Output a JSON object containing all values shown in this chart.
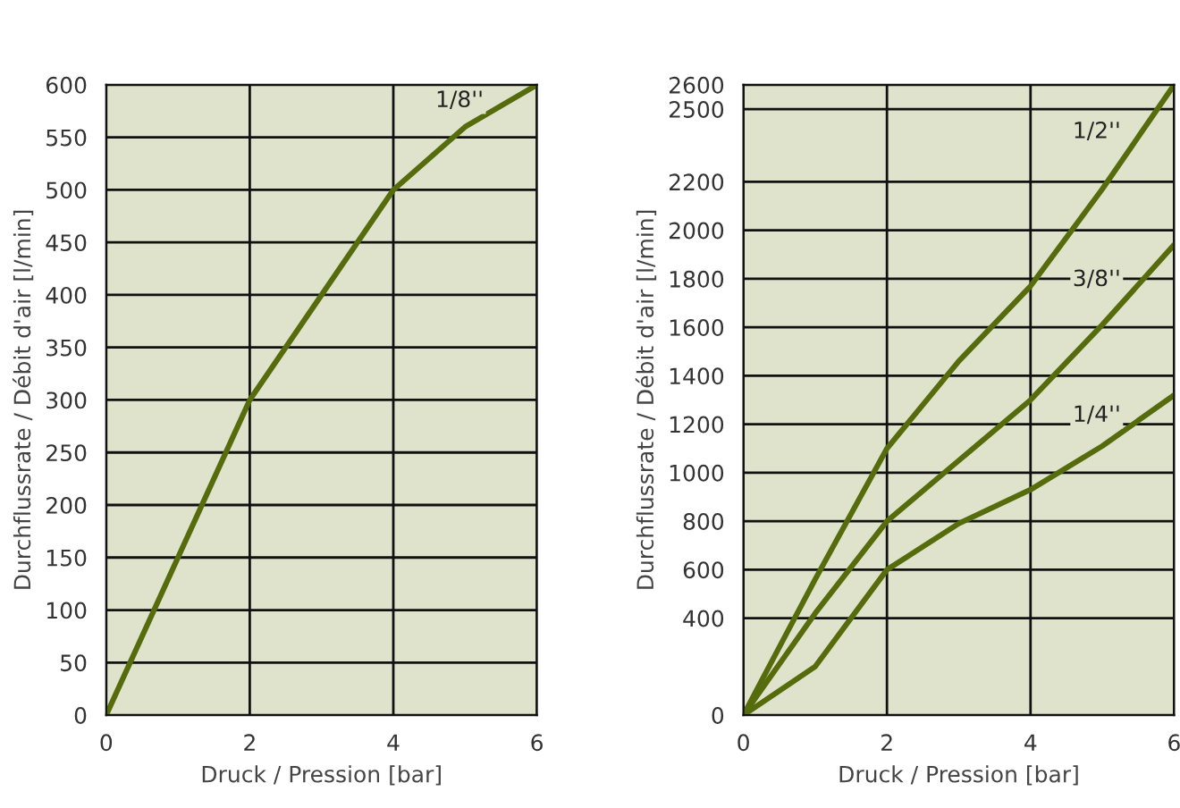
{
  "chart_data": [
    {
      "type": "line",
      "xlabel": "Druck / Pression [bar]",
      "ylabel": "Durchflussrate / Débit d'air [l/min]",
      "x": [
        0,
        1,
        2,
        3,
        4,
        5,
        6
      ],
      "series": [
        {
          "name": "1/8''",
          "color": "#566b0c",
          "values": [
            0,
            150,
            300,
            400,
            500,
            560,
            600
          ]
        }
      ],
      "xlim": [
        0,
        6
      ],
      "ylim": [
        0,
        600
      ],
      "xticks": [
        0,
        2,
        4,
        6
      ],
      "yticks": [
        0,
        50,
        100,
        150,
        200,
        250,
        300,
        350,
        400,
        450,
        500,
        550,
        600
      ],
      "grid": true,
      "marker": "none",
      "line_style": "solid",
      "legend": false
    },
    {
      "type": "line",
      "xlabel": "Druck / Pression [bar]",
      "ylabel": "Durchflussrate / Débit d'air [l/min]",
      "x": [
        0,
        1,
        2,
        3,
        4,
        5,
        6
      ],
      "series": [
        {
          "name": "1/2''",
          "color": "#566b0c",
          "values": [
            0,
            560,
            1100,
            1460,
            1770,
            2170,
            2600
          ]
        },
        {
          "name": "3/8''",
          "color": "#566b0c",
          "values": [
            0,
            420,
            800,
            1050,
            1300,
            1610,
            1940
          ]
        },
        {
          "name": "1/4''",
          "color": "#566b0c",
          "values": [
            0,
            200,
            600,
            790,
            930,
            1110,
            1320
          ]
        }
      ],
      "xlim": [
        0,
        6
      ],
      "ylim": [
        0,
        2600
      ],
      "xticks": [
        0,
        2,
        4,
        6
      ],
      "yticks": [
        0,
        400,
        600,
        800,
        1000,
        1200,
        1400,
        1600,
        1800,
        2000,
        2200,
        2500,
        2600
      ],
      "grid": true,
      "marker": "none",
      "line_style": "solid",
      "legend": false
    }
  ]
}
